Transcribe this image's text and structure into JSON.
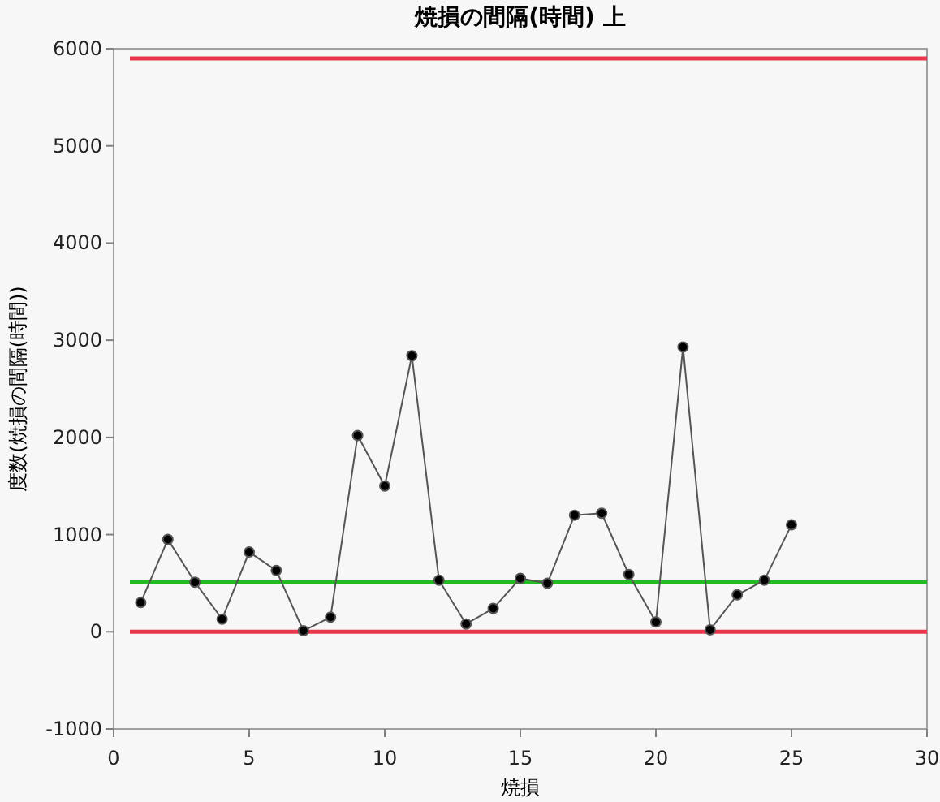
{
  "chart_data": {
    "type": "line",
    "title": "焼損の間隔(時間)  上",
    "xlabel": "焼損",
    "ylabel": "度数(焼損の間隔(時間))",
    "x": [
      1,
      2,
      3,
      4,
      5,
      6,
      7,
      8,
      9,
      10,
      11,
      12,
      13,
      14,
      15,
      16,
      17,
      18,
      19,
      20,
      21,
      22,
      23,
      24,
      25
    ],
    "series": [
      {
        "color": "#555555",
        "values": [
          300,
          950,
          510,
          130,
          820,
          630,
          10,
          150,
          2020,
          1500,
          2840,
          530,
          80,
          240,
          550,
          500,
          1200,
          1220,
          590,
          100,
          2930,
          20,
          380,
          530,
          1100
        ]
      }
    ],
    "xlim": [
      0,
      30
    ],
    "xticks": [
      0,
      5,
      10,
      15,
      20,
      25,
      30
    ],
    "ylim": [
      -1000,
      6000
    ],
    "yticks": [
      -1000,
      0,
      1000,
      2000,
      3000,
      4000,
      5000,
      6000
    ],
    "marker": "circle",
    "line_style": "solid",
    "ref_lines": [
      {
        "axis": "y",
        "value": 5900,
        "color": "#e8364a"
      },
      {
        "axis": "y",
        "value": 0,
        "color": "#e8364a"
      },
      {
        "axis": "y",
        "value": 510,
        "color": "#22bb22"
      }
    ]
  }
}
